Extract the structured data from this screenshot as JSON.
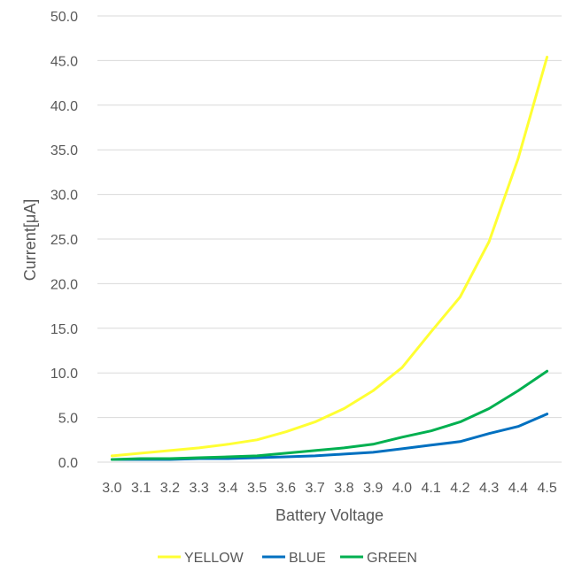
{
  "chart_data": {
    "type": "line",
    "title": "",
    "xlabel": "Battery Voltage",
    "ylabel": "Current[μA]",
    "x": [
      "3.0",
      "3.1",
      "3.2",
      "3.3",
      "3.4",
      "3.5",
      "3.6",
      "3.7",
      "3.8",
      "3.9",
      "4.0",
      "4.1",
      "4.2",
      "4.3",
      "4.4",
      "4.5"
    ],
    "y_ticks": [
      "0.0",
      "5.0",
      "10.0",
      "15.0",
      "20.0",
      "25.0",
      "30.0",
      "35.0",
      "40.0",
      "45.0",
      "50.0"
    ],
    "ylim": [
      0,
      50
    ],
    "grid": true,
    "legend_position": "bottom",
    "series": [
      {
        "name": "YELLOW",
        "color": "#ffff33",
        "values": [
          0.7,
          1.0,
          1.3,
          1.6,
          2.0,
          2.5,
          3.4,
          4.5,
          6.0,
          8.0,
          10.6,
          14.6,
          18.5,
          24.7,
          34.0,
          45.4
        ]
      },
      {
        "name": "BLUE",
        "color": "#0070c0",
        "values": [
          0.3,
          0.3,
          0.3,
          0.4,
          0.4,
          0.5,
          0.6,
          0.7,
          0.9,
          1.1,
          1.5,
          1.9,
          2.3,
          3.2,
          4.0,
          5.4
        ]
      },
      {
        "name": "GREEN",
        "color": "#00b050",
        "values": [
          0.3,
          0.4,
          0.4,
          0.5,
          0.6,
          0.7,
          1.0,
          1.3,
          1.6,
          2.0,
          2.8,
          3.5,
          4.5,
          6.0,
          8.0,
          10.2
        ]
      }
    ]
  }
}
